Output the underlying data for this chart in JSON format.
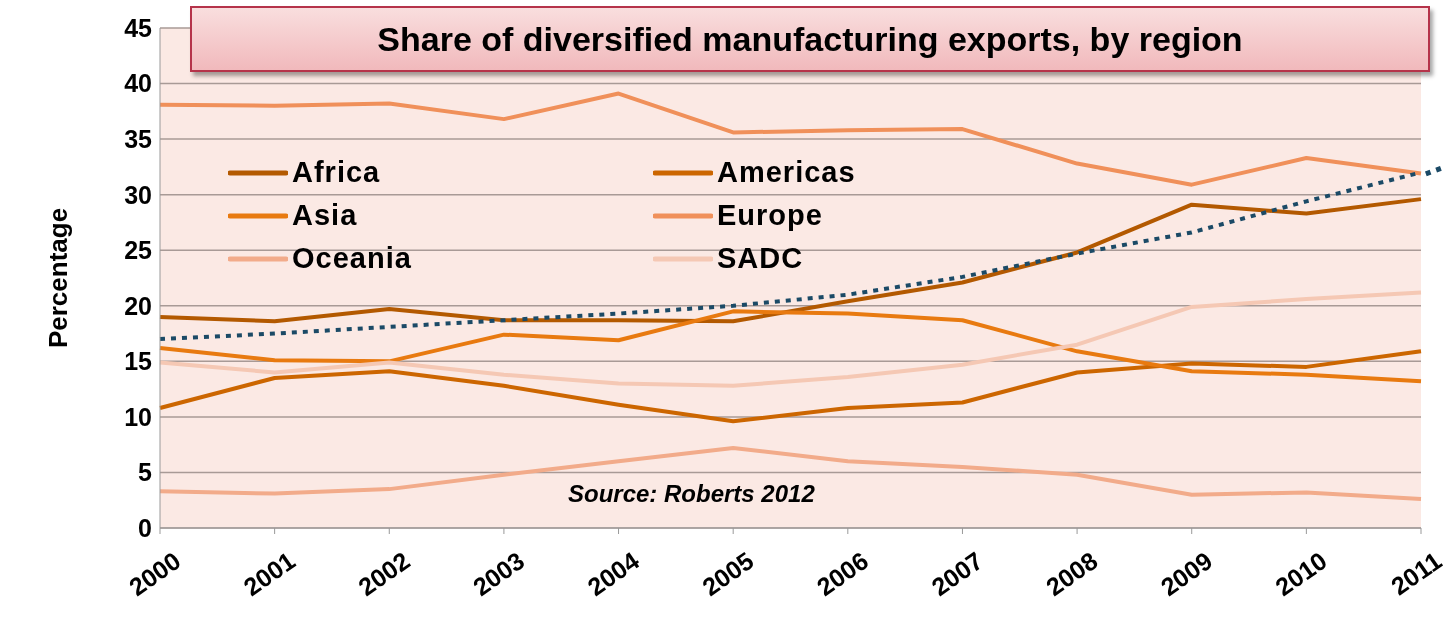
{
  "chart_data": {
    "type": "line",
    "title": "Share of diversified manufacturing exports, by region",
    "ylabel": "Percentage",
    "annotations": [
      "Source: Roberts 2012"
    ],
    "categories": [
      "2000",
      "2001",
      "2002",
      "2003",
      "2004",
      "2005",
      "2006",
      "2007",
      "2008",
      "2009",
      "2010",
      "2011"
    ],
    "series": [
      {
        "name": "Africa",
        "color": "#b35900",
        "values": [
          19.0,
          18.6,
          19.7,
          18.7,
          18.7,
          18.6,
          20.4,
          22.1,
          24.8,
          29.1,
          28.3,
          29.6
        ]
      },
      {
        "name": "Americas",
        "color": "#cc6600",
        "values": [
          10.8,
          13.5,
          14.1,
          12.8,
          11.1,
          9.6,
          10.8,
          11.3,
          14.0,
          14.8,
          14.5,
          15.9
        ]
      },
      {
        "name": "Asia",
        "color": "#e87a10",
        "values": [
          16.2,
          15.1,
          15.0,
          17.4,
          16.9,
          19.5,
          19.3,
          18.7,
          15.9,
          14.1,
          13.8,
          13.2
        ]
      },
      {
        "name": "Europe",
        "color": "#f0905a",
        "values": [
          38.1,
          38.0,
          38.2,
          36.8,
          39.1,
          35.6,
          35.8,
          35.9,
          32.8,
          30.9,
          33.3,
          31.9
        ]
      },
      {
        "name": "Oceania",
        "color": "#f2ab8a",
        "values": [
          3.3,
          3.1,
          3.5,
          4.8,
          6.0,
          7.2,
          6.0,
          5.5,
          4.8,
          3.0,
          3.2,
          2.6
        ]
      },
      {
        "name": "SADC",
        "color": "#f5c8b4",
        "values": [
          14.9,
          14.0,
          14.9,
          13.8,
          13.0,
          12.8,
          13.6,
          14.7,
          16.5,
          19.9,
          20.6,
          21.2
        ]
      },
      {
        "type": "line",
        "line_style": "dotted",
        "color": "#1b4a66",
        "values": [
          17.0,
          17.5,
          18.1,
          18.7,
          19.3,
          20.0,
          21.0,
          22.6,
          24.7,
          26.6,
          29.4,
          32.0
        ]
      }
    ],
    "ylim": [
      0,
      45
    ],
    "yticks": [
      0,
      5,
      10,
      15,
      20,
      25,
      30,
      35,
      40,
      45
    ],
    "grid": "y",
    "legend": "top left",
    "line_style": "solid",
    "marker": "none"
  }
}
